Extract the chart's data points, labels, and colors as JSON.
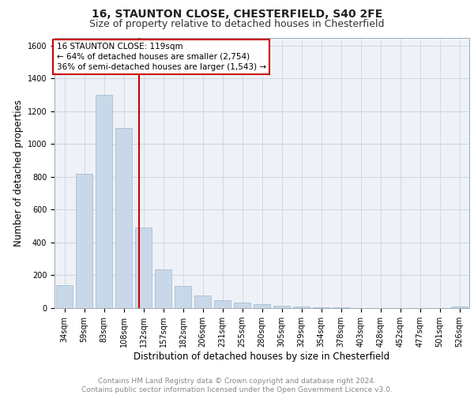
{
  "title1": "16, STAUNTON CLOSE, CHESTERFIELD, S40 2FE",
  "title2": "Size of property relative to detached houses in Chesterfield",
  "xlabel": "Distribution of detached houses by size in Chesterfield",
  "ylabel": "Number of detached properties",
  "categories": [
    "34sqm",
    "59sqm",
    "83sqm",
    "108sqm",
    "132sqm",
    "157sqm",
    "182sqm",
    "206sqm",
    "231sqm",
    "255sqm",
    "280sqm",
    "305sqm",
    "329sqm",
    "354sqm",
    "378sqm",
    "403sqm",
    "428sqm",
    "452sqm",
    "477sqm",
    "501sqm",
    "526sqm"
  ],
  "values": [
    140,
    820,
    1300,
    1100,
    490,
    235,
    135,
    75,
    47,
    32,
    25,
    15,
    8,
    5,
    3,
    2,
    1,
    0,
    0,
    0,
    10
  ],
  "bar_color": "#c8d8e8",
  "bar_edge_color": "#a0b8cc",
  "vline_x": 3.78,
  "vline_color": "#cc0000",
  "annotation_text": "16 STAUNTON CLOSE: 119sqm\n← 64% of detached houses are smaller (2,754)\n36% of semi-detached houses are larger (1,543) →",
  "annotation_box_color": "#cc0000",
  "ylim": [
    0,
    1650
  ],
  "yticks": [
    0,
    200,
    400,
    600,
    800,
    1000,
    1200,
    1400,
    1600
  ],
  "grid_color": "#c8d0d8",
  "background_color": "#eef2f7",
  "footer_text": "Contains HM Land Registry data © Crown copyright and database right 2024.\nContains public sector information licensed under the Open Government Licence v3.0.",
  "title1_fontsize": 10,
  "title2_fontsize": 9,
  "xlabel_fontsize": 8.5,
  "ylabel_fontsize": 8.5,
  "tick_fontsize": 7,
  "annotation_fontsize": 7.5,
  "footer_fontsize": 6.5
}
